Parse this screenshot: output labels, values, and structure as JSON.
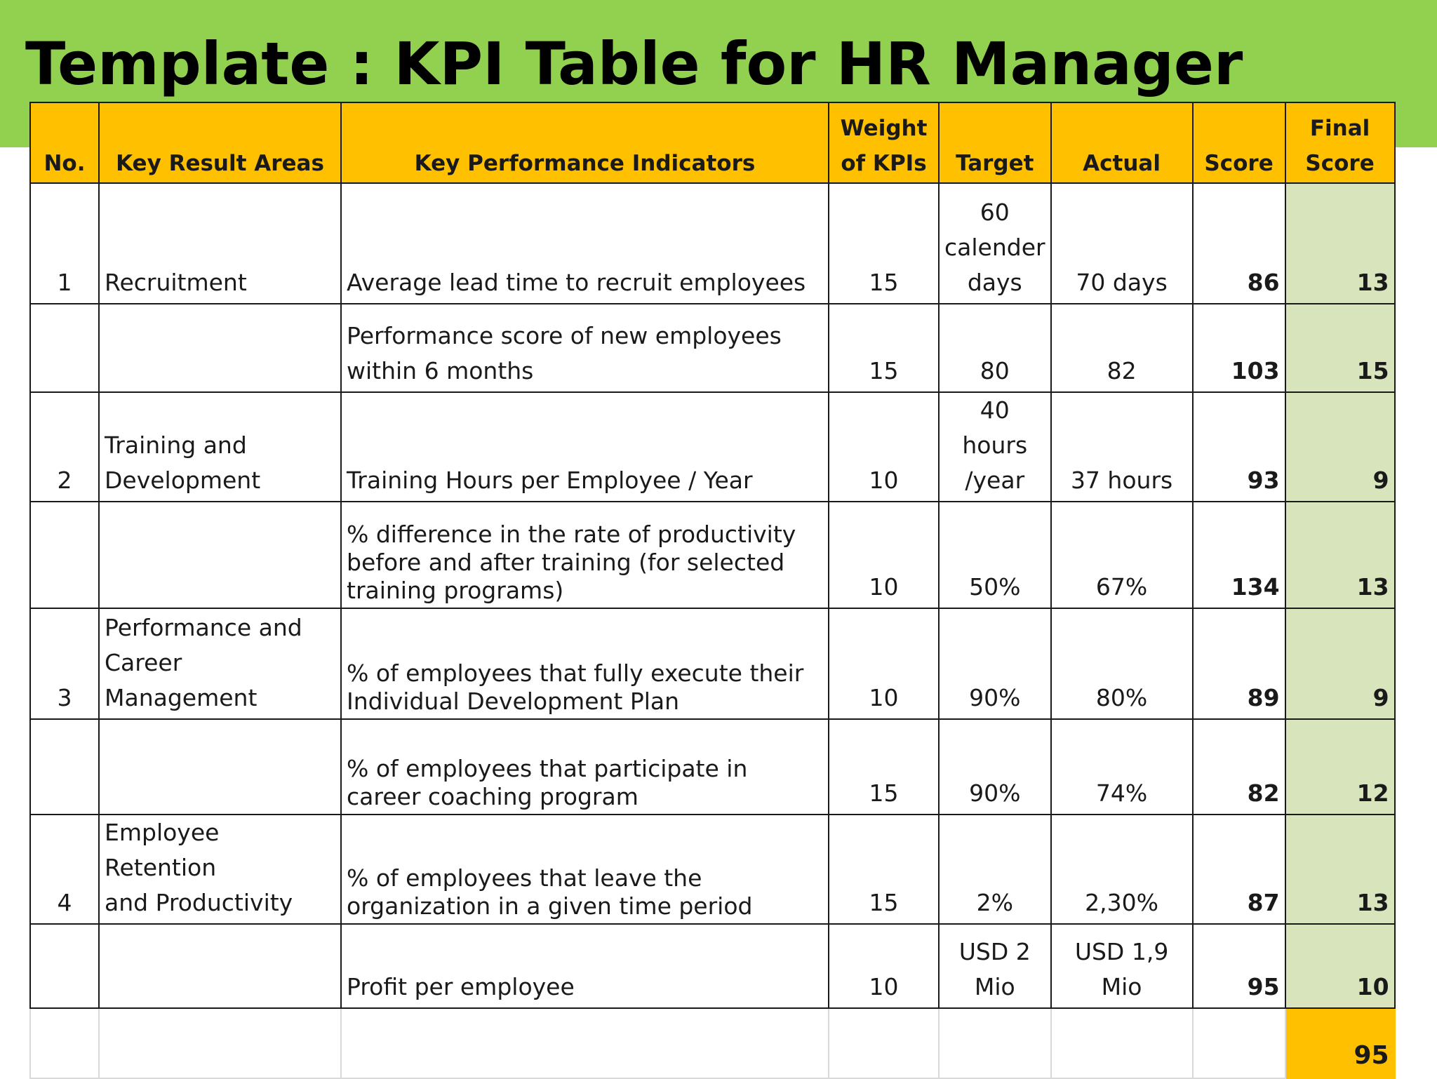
{
  "title": "Template : KPI Table for HR Manager",
  "colors": {
    "title_band": "#92d050",
    "header_fill": "#ffc000",
    "final_score_fill": "#d8e4bc",
    "total_fill": "#ffc000"
  },
  "table": {
    "headers": {
      "no": "No.",
      "kra": "Key Result Areas",
      "kpi": "Key Performance Indicators",
      "weight": "Weight\nof KPIs",
      "target": "Target",
      "actual": "Actual",
      "score": "Score",
      "final": "Final\nScore"
    },
    "rows": [
      {
        "no": "1",
        "kra": "Recruitment",
        "kpi": "Average lead time to recruit employees",
        "weight": "15",
        "target": "60\ncalender\ndays",
        "actual": "70 days",
        "score": "86",
        "final": "13"
      },
      {
        "no": "",
        "kra": "",
        "kpi": "Performance score of new employees\nwithin 6 months",
        "weight": "15",
        "target": "80",
        "actual": "82",
        "score": "103",
        "final": "15"
      },
      {
        "no": "2",
        "kra": "Training and\nDevelopment",
        "kpi": "Training Hours per Employee / Year",
        "weight": "10",
        "target": "40 hours\n/year",
        "actual": "37 hours",
        "score": "93",
        "final": "9"
      },
      {
        "no": "",
        "kra": "",
        "kpi": "% difference in the rate of productivity\nbefore and after training (for selected\ntraining programs)",
        "weight": "10",
        "target": "50%",
        "actual": "67%",
        "score": "134",
        "final": "13"
      },
      {
        "no": "3",
        "kra": "Performance and\nCareer\nManagement",
        "kpi": "% of employees that fully execute their\nIndividual Development Plan",
        "weight": "10",
        "target": "90%",
        "actual": "80%",
        "score": "89",
        "final": "9"
      },
      {
        "no": "",
        "kra": "",
        "kpi": "% of employees that participate in\ncareer coaching program",
        "weight": "15",
        "target": "90%",
        "actual": "74%",
        "score": "82",
        "final": "12"
      },
      {
        "no": "4",
        "kra": "Employee Retention\nand Productivity",
        "kpi": "% of employees that leave the\norganization in a given time period",
        "weight": "15",
        "target": "2%",
        "actual": "2,30%",
        "score": "87",
        "final": "13"
      },
      {
        "no": "",
        "kra": "",
        "kpi": "Profit per employee",
        "weight": "10",
        "target": "USD 2\nMio",
        "actual": "USD 1,9\nMio",
        "score": "95",
        "final": "10"
      }
    ],
    "total_final_score": "95"
  }
}
